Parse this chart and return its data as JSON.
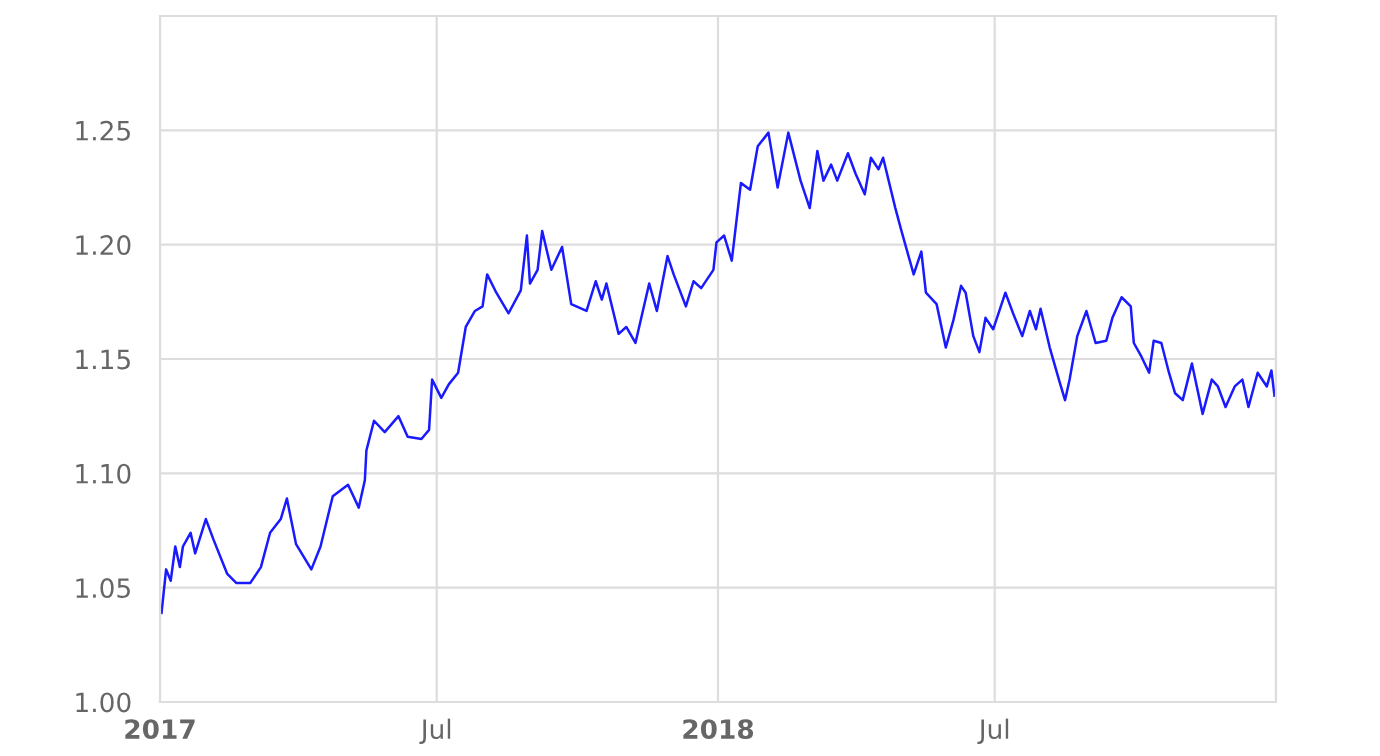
{
  "chart_data": {
    "type": "line",
    "x": [
      "2017-01-02",
      "2017-01-05",
      "2017-01-08",
      "2017-01-11",
      "2017-01-14",
      "2017-01-16",
      "2017-01-21",
      "2017-01-24",
      "2017-01-31",
      "2017-02-05",
      "2017-02-14",
      "2017-02-20",
      "2017-03-01",
      "2017-03-08",
      "2017-03-14",
      "2017-03-21",
      "2017-03-25",
      "2017-03-31",
      "2017-04-10",
      "2017-04-16",
      "2017-04-24",
      "2017-05-04",
      "2017-05-11",
      "2017-05-15",
      "2017-05-16",
      "2017-05-21",
      "2017-05-28",
      "2017-06-06",
      "2017-06-12",
      "2017-06-21",
      "2017-06-26",
      "2017-06-28",
      "2017-07-04",
      "2017-07-09",
      "2017-07-15",
      "2017-07-20",
      "2017-07-26",
      "2017-07-31",
      "2017-08-03",
      "2017-08-09",
      "2017-08-17",
      "2017-08-25",
      "2017-08-29",
      "2017-08-31",
      "2017-09-05",
      "2017-09-08",
      "2017-09-14",
      "2017-09-21",
      "2017-09-27",
      "2017-10-07",
      "2017-10-13",
      "2017-10-17",
      "2017-10-20",
      "2017-10-28",
      "2017-11-02",
      "2017-11-08",
      "2017-11-17",
      "2017-11-22",
      "2017-11-29",
      "2017-12-03",
      "2017-12-11",
      "2017-12-16",
      "2017-12-21",
      "2017-12-29",
      "2017-12-31",
      "2018-01-05",
      "2018-01-10",
      "2018-01-16",
      "2018-01-22",
      "2018-01-27",
      "2018-02-03",
      "2018-02-09",
      "2018-02-16",
      "2018-02-24",
      "2018-03-02",
      "2018-03-07",
      "2018-03-11",
      "2018-03-16",
      "2018-03-20",
      "2018-03-27",
      "2018-04-01",
      "2018-04-07",
      "2018-04-11",
      "2018-04-16",
      "2018-04-19",
      "2018-04-27",
      "2018-05-01",
      "2018-05-09",
      "2018-05-14",
      "2018-05-17",
      "2018-05-24",
      "2018-05-30",
      "2018-06-04",
      "2018-06-09",
      "2018-06-12",
      "2018-06-17",
      "2018-06-21",
      "2018-06-25",
      "2018-06-30",
      "2018-07-08",
      "2018-07-13",
      "2018-07-19",
      "2018-07-24",
      "2018-07-28",
      "2018-07-31",
      "2018-08-06",
      "2018-08-12",
      "2018-08-16",
      "2018-08-19",
      "2018-08-24",
      "2018-08-30",
      "2018-09-05",
      "2018-09-12",
      "2018-09-16",
      "2018-09-22",
      "2018-09-28",
      "2018-09-30",
      "2018-10-05",
      "2018-10-10",
      "2018-10-13",
      "2018-10-18",
      "2018-10-23",
      "2018-10-27",
      "2018-11-01",
      "2018-11-04",
      "2018-11-07",
      "2018-11-14",
      "2018-11-20",
      "2018-11-24",
      "2018-11-29",
      "2018-12-05",
      "2018-12-10",
      "2018-12-14",
      "2018-12-20",
      "2018-12-26",
      "2018-12-29",
      "2018-12-31"
    ],
    "series": [
      {
        "color": "#1a1aff",
        "values": [
          1.039,
          1.058,
          1.053,
          1.068,
          1.059,
          1.068,
          1.074,
          1.065,
          1.08,
          1.071,
          1.056,
          1.052,
          1.052,
          1.059,
          1.074,
          1.08,
          1.089,
          1.069,
          1.058,
          1.068,
          1.09,
          1.095,
          1.085,
          1.097,
          1.11,
          1.123,
          1.118,
          1.125,
          1.116,
          1.115,
          1.119,
          1.141,
          1.133,
          1.139,
          1.144,
          1.164,
          1.171,
          1.173,
          1.187,
          1.179,
          1.17,
          1.18,
          1.204,
          1.183,
          1.189,
          1.206,
          1.189,
          1.199,
          1.174,
          1.171,
          1.184,
          1.176,
          1.183,
          1.161,
          1.164,
          1.157,
          1.183,
          1.171,
          1.195,
          1.187,
          1.173,
          1.184,
          1.181,
          1.189,
          1.201,
          1.204,
          1.193,
          1.227,
          1.224,
          1.243,
          1.249,
          1.225,
          1.249,
          1.228,
          1.216,
          1.241,
          1.228,
          1.235,
          1.228,
          1.24,
          1.231,
          1.222,
          1.238,
          1.233,
          1.238,
          1.216,
          1.206,
          1.187,
          1.197,
          1.179,
          1.174,
          1.155,
          1.167,
          1.182,
          1.179,
          1.16,
          1.153,
          1.168,
          1.163,
          1.179,
          1.17,
          1.16,
          1.171,
          1.163,
          1.172,
          1.155,
          1.141,
          1.132,
          1.141,
          1.16,
          1.171,
          1.157,
          1.158,
          1.168,
          1.177,
          1.173,
          1.157,
          1.151,
          1.144,
          1.158,
          1.157,
          1.144,
          1.135,
          1.132,
          1.14,
          1.148,
          1.126,
          1.141,
          1.138,
          1.129,
          1.138,
          1.141,
          1.129,
          1.144,
          1.138,
          1.145,
          1.134
        ]
      }
    ],
    "xlim": [
      "2017-01-01",
      "2019-01-01"
    ],
    "xticks": [
      {
        "value": "2017-01-01",
        "label": "2017"
      },
      {
        "value": "2017-07-01",
        "label": "Jul"
      },
      {
        "value": "2018-01-01",
        "label": "2018"
      },
      {
        "value": "2018-07-01",
        "label": "Jul"
      },
      {
        "value": "2019-01-01",
        "label": null
      }
    ],
    "ylim": [
      1.0,
      1.3
    ],
    "yticks": [
      {
        "value": 1.0,
        "label": "1.00"
      },
      {
        "value": 1.05,
        "label": "1.05"
      },
      {
        "value": 1.1,
        "label": "1.10"
      },
      {
        "value": 1.15,
        "label": "1.15"
      },
      {
        "value": 1.2,
        "label": "1.20"
      },
      {
        "value": 1.25,
        "label": "1.25"
      },
      {
        "value": 1.3,
        "label": null
      }
    ],
    "grid": true,
    "marker": "none",
    "line_style": "solid"
  }
}
